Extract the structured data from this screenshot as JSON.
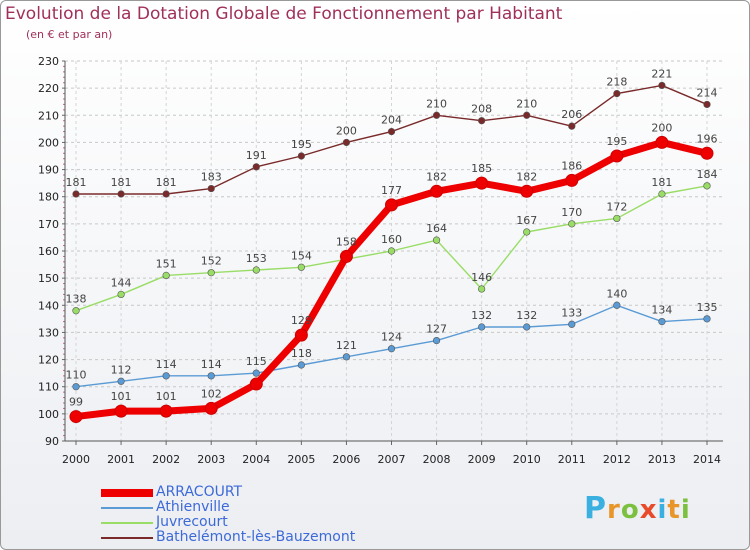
{
  "title": "Evolution de la Dotation Globale de Fonctionnement par Habitant",
  "subtitle": "(en € et par an)",
  "logo": {
    "text": "Proxiti",
    "colors": [
      "#3ab0e0",
      "#e8962a",
      "#7cc040",
      "#e84a2a",
      "#3ab0e0",
      "#e8962a",
      "#7cc040"
    ]
  },
  "chart_data": {
    "type": "line",
    "title": "Evolution de la Dotation Globale de Fonctionnement par Habitant",
    "ylabel": "(en € et par an)",
    "xlabel": "",
    "x": [
      2000,
      2001,
      2002,
      2003,
      2004,
      2005,
      2006,
      2007,
      2008,
      2009,
      2010,
      2011,
      2012,
      2013,
      2014
    ],
    "ylim": [
      90,
      230
    ],
    "yticks": [
      90,
      100,
      110,
      120,
      130,
      140,
      150,
      160,
      170,
      180,
      190,
      200,
      210,
      220,
      230
    ],
    "grid": "horizontal dashed",
    "legend_position": "bottom-left",
    "series": [
      {
        "name": "ARRACOURT",
        "color": "#ee0000",
        "values": [
          99,
          101,
          101,
          102,
          111,
          129,
          158,
          177,
          182,
          185,
          182,
          186,
          195,
          200,
          196
        ],
        "labels": [
          "99",
          "101",
          "101",
          "102",
          "",
          "129",
          "158",
          "177",
          "182",
          "185",
          "182",
          "186",
          "195",
          "200",
          "196"
        ]
      },
      {
        "name": "Athienville",
        "color": "#5b9bd5",
        "values": [
          110,
          112,
          114,
          114,
          115,
          118,
          121,
          124,
          127,
          132,
          132,
          133,
          140,
          134,
          135
        ],
        "labels": [
          "110",
          "112",
          "114",
          "114",
          "115",
          "118",
          "121",
          "124",
          "127",
          "132",
          "132",
          "133",
          "140",
          "134",
          "135"
        ]
      },
      {
        "name": "Juvrecourt",
        "color": "#99dd66",
        "values": [
          138,
          144,
          151,
          152,
          153,
          154,
          157,
          160,
          164,
          146,
          167,
          170,
          172,
          181,
          184
        ],
        "labels": [
          "138",
          "144",
          "151",
          "152",
          "153",
          "154",
          "",
          "160",
          "164",
          "146",
          "167",
          "170",
          "172",
          "181",
          "184"
        ]
      },
      {
        "name": "Bathelémont-lès-Bauzemont",
        "color": "#7a2a2a",
        "values": [
          181,
          181,
          181,
          183,
          191,
          195,
          200,
          204,
          210,
          208,
          210,
          206,
          218,
          221,
          214
        ],
        "labels": [
          "181",
          "181",
          "181",
          "183",
          "191",
          "195",
          "200",
          "204",
          "210",
          "208",
          "210",
          "206",
          "218",
          "221",
          "214"
        ]
      }
    ]
  }
}
